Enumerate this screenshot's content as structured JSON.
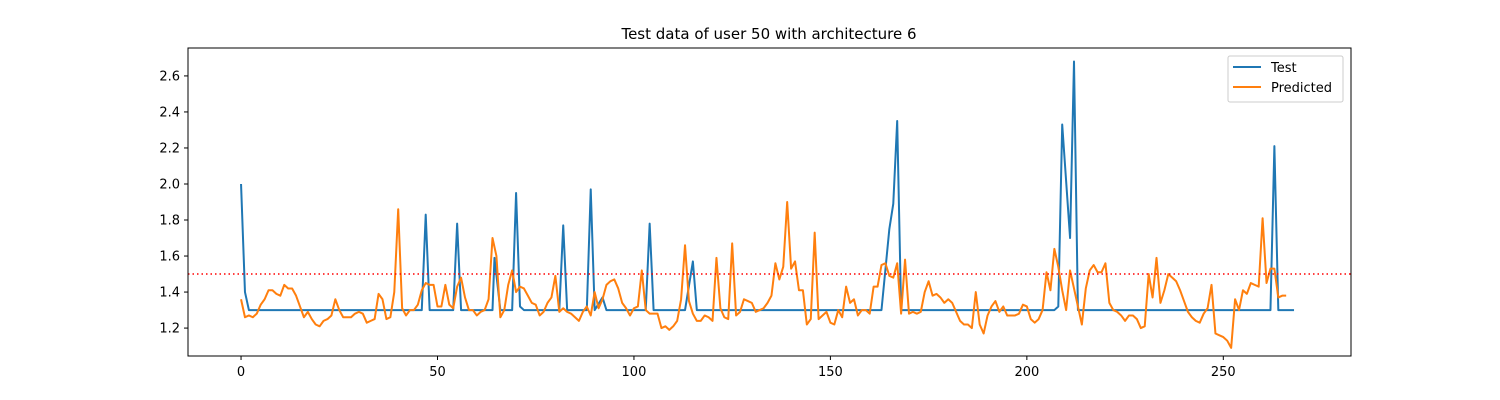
{
  "chart_data": {
    "type": "line",
    "title": "Test data of user 50 with architecture 6",
    "xlabel": "",
    "ylabel": "",
    "xlim": [
      -13.5,
      282.5
    ],
    "ylim": [
      1.045,
      2.755
    ],
    "x_ticks": [
      0,
      50,
      100,
      150,
      200,
      250
    ],
    "y_ticks": [
      1.2,
      1.4,
      1.6,
      1.8,
      2.0,
      2.2,
      2.4,
      2.6
    ],
    "y_tick_labels": [
      "1.2",
      "1.4",
      "1.6",
      "1.8",
      "2.0",
      "2.2",
      "2.4",
      "2.6"
    ],
    "legend_position": "top-right",
    "threshold": {
      "value": 1.5,
      "color": "#ff0000",
      "style": "dotted"
    },
    "series": [
      {
        "name": "Test",
        "color": "#1f77b4",
        "points": [
          [
            0,
            2.0
          ],
          [
            1,
            1.4
          ],
          [
            2,
            1.3
          ],
          [
            46,
            1.3
          ],
          [
            47,
            1.83
          ],
          [
            48,
            1.3
          ],
          [
            54,
            1.3
          ],
          [
            55,
            1.78
          ],
          [
            56,
            1.3
          ],
          [
            64,
            1.3
          ],
          [
            64.5,
            1.59
          ],
          [
            66,
            1.3
          ],
          [
            69,
            1.3
          ],
          [
            70,
            1.95
          ],
          [
            71,
            1.32
          ],
          [
            72,
            1.3
          ],
          [
            81,
            1.3
          ],
          [
            82,
            1.77
          ],
          [
            83,
            1.3
          ],
          [
            88,
            1.3
          ],
          [
            89,
            1.97
          ],
          [
            90,
            1.3
          ],
          [
            92,
            1.37
          ],
          [
            93,
            1.3
          ],
          [
            103,
            1.3
          ],
          [
            104,
            1.78
          ],
          [
            105,
            1.3
          ],
          [
            113,
            1.3
          ],
          [
            115,
            1.57
          ],
          [
            116,
            1.3
          ],
          [
            163,
            1.3
          ],
          [
            165,
            1.75
          ],
          [
            166,
            1.89
          ],
          [
            167,
            2.35
          ],
          [
            168,
            1.3
          ],
          [
            207,
            1.3
          ],
          [
            208,
            1.32
          ],
          [
            209,
            2.33
          ],
          [
            211,
            1.7
          ],
          [
            212,
            2.68
          ],
          [
            213,
            1.3
          ],
          [
            262,
            1.3
          ],
          [
            263,
            2.21
          ],
          [
            264,
            1.3
          ],
          [
            268,
            1.3
          ]
        ]
      },
      {
        "name": "Predicted",
        "color": "#ff7f0e",
        "points": [
          [
            0,
            1.36
          ],
          [
            1,
            1.26
          ],
          [
            2,
            1.27
          ],
          [
            3,
            1.26
          ],
          [
            4,
            1.28
          ],
          [
            5,
            1.33
          ],
          [
            6,
            1.36
          ],
          [
            7,
            1.41
          ],
          [
            8,
            1.41
          ],
          [
            9,
            1.39
          ],
          [
            10,
            1.38
          ],
          [
            11,
            1.44
          ],
          [
            12,
            1.42
          ],
          [
            13,
            1.42
          ],
          [
            14,
            1.38
          ],
          [
            15,
            1.32
          ],
          [
            16,
            1.26
          ],
          [
            17,
            1.29
          ],
          [
            18,
            1.25
          ],
          [
            19,
            1.22
          ],
          [
            20,
            1.21
          ],
          [
            21,
            1.24
          ],
          [
            22,
            1.25
          ],
          [
            23,
            1.27
          ],
          [
            24,
            1.36
          ],
          [
            25,
            1.3
          ],
          [
            26,
            1.26
          ],
          [
            27,
            1.26
          ],
          [
            28,
            1.26
          ],
          [
            29,
            1.28
          ],
          [
            30,
            1.29
          ],
          [
            31,
            1.28
          ],
          [
            32,
            1.23
          ],
          [
            33,
            1.24
          ],
          [
            34,
            1.25
          ],
          [
            35,
            1.39
          ],
          [
            36,
            1.36
          ],
          [
            37,
            1.25
          ],
          [
            38,
            1.26
          ],
          [
            39,
            1.4
          ],
          [
            40,
            1.86
          ],
          [
            41,
            1.31
          ],
          [
            42,
            1.27
          ],
          [
            43,
            1.3
          ],
          [
            44,
            1.3
          ],
          [
            45,
            1.33
          ],
          [
            46,
            1.41
          ],
          [
            47,
            1.45
          ],
          [
            48,
            1.44
          ],
          [
            49,
            1.44
          ],
          [
            50,
            1.32
          ],
          [
            51,
            1.32
          ],
          [
            52,
            1.44
          ],
          [
            53,
            1.33
          ],
          [
            54,
            1.31
          ],
          [
            55,
            1.43
          ],
          [
            56,
            1.48
          ],
          [
            57,
            1.37
          ],
          [
            58,
            1.3
          ],
          [
            59,
            1.3
          ],
          [
            60,
            1.27
          ],
          [
            61,
            1.29
          ],
          [
            62,
            1.3
          ],
          [
            63,
            1.36
          ],
          [
            64,
            1.7
          ],
          [
            65,
            1.6
          ],
          [
            66,
            1.26
          ],
          [
            67,
            1.3
          ],
          [
            68,
            1.44
          ],
          [
            69,
            1.52
          ],
          [
            70,
            1.4
          ],
          [
            71,
            1.43
          ],
          [
            72,
            1.42
          ],
          [
            73,
            1.38
          ],
          [
            74,
            1.34
          ],
          [
            75,
            1.33
          ],
          [
            76,
            1.27
          ],
          [
            77,
            1.29
          ],
          [
            78,
            1.34
          ],
          [
            79,
            1.37
          ],
          [
            80,
            1.49
          ],
          [
            81,
            1.29
          ],
          [
            82,
            1.31
          ],
          [
            83,
            1.29
          ],
          [
            84,
            1.28
          ],
          [
            85,
            1.26
          ],
          [
            86,
            1.24
          ],
          [
            87,
            1.29
          ],
          [
            88,
            1.32
          ],
          [
            89,
            1.27
          ],
          [
            90,
            1.4
          ],
          [
            91,
            1.31
          ],
          [
            92,
            1.36
          ],
          [
            93,
            1.44
          ],
          [
            94,
            1.46
          ],
          [
            95,
            1.47
          ],
          [
            96,
            1.42
          ],
          [
            97,
            1.34
          ],
          [
            98,
            1.31
          ],
          [
            99,
            1.27
          ],
          [
            100,
            1.31
          ],
          [
            101,
            1.32
          ],
          [
            102,
            1.52
          ],
          [
            103,
            1.3
          ],
          [
            104,
            1.28
          ],
          [
            105,
            1.28
          ],
          [
            106,
            1.28
          ],
          [
            107,
            1.2
          ],
          [
            108,
            1.21
          ],
          [
            109,
            1.19
          ],
          [
            110,
            1.21
          ],
          [
            111,
            1.24
          ],
          [
            112,
            1.36
          ],
          [
            113,
            1.66
          ],
          [
            114,
            1.35
          ],
          [
            115,
            1.28
          ],
          [
            116,
            1.24
          ],
          [
            117,
            1.24
          ],
          [
            118,
            1.27
          ],
          [
            119,
            1.26
          ],
          [
            120,
            1.24
          ],
          [
            121,
            1.59
          ],
          [
            122,
            1.31
          ],
          [
            123,
            1.26
          ],
          [
            124,
            1.25
          ],
          [
            125,
            1.67
          ],
          [
            126,
            1.27
          ],
          [
            127,
            1.29
          ],
          [
            128,
            1.36
          ],
          [
            129,
            1.35
          ],
          [
            130,
            1.34
          ],
          [
            131,
            1.29
          ],
          [
            132,
            1.3
          ],
          [
            133,
            1.31
          ],
          [
            134,
            1.34
          ],
          [
            135,
            1.38
          ],
          [
            136,
            1.56
          ],
          [
            137,
            1.47
          ],
          [
            138,
            1.54
          ],
          [
            139,
            1.9
          ],
          [
            140,
            1.53
          ],
          [
            141,
            1.57
          ],
          [
            142,
            1.41
          ],
          [
            143,
            1.41
          ],
          [
            144,
            1.22
          ],
          [
            145,
            1.25
          ],
          [
            146,
            1.73
          ],
          [
            147,
            1.25
          ],
          [
            148,
            1.27
          ],
          [
            149,
            1.29
          ],
          [
            150,
            1.23
          ],
          [
            151,
            1.22
          ],
          [
            152,
            1.3
          ],
          [
            153,
            1.26
          ],
          [
            154,
            1.43
          ],
          [
            155,
            1.34
          ],
          [
            156,
            1.36
          ],
          [
            157,
            1.27
          ],
          [
            158,
            1.3
          ],
          [
            159,
            1.3
          ],
          [
            160,
            1.28
          ],
          [
            161,
            1.43
          ],
          [
            162,
            1.43
          ],
          [
            163,
            1.55
          ],
          [
            164,
            1.56
          ],
          [
            165,
            1.49
          ],
          [
            166,
            1.48
          ],
          [
            167,
            1.56
          ],
          [
            168,
            1.28
          ],
          [
            169,
            1.58
          ],
          [
            170,
            1.28
          ],
          [
            171,
            1.29
          ],
          [
            172,
            1.28
          ],
          [
            173,
            1.29
          ],
          [
            174,
            1.4
          ],
          [
            175,
            1.46
          ],
          [
            176,
            1.38
          ],
          [
            177,
            1.39
          ],
          [
            178,
            1.37
          ],
          [
            179,
            1.34
          ],
          [
            180,
            1.36
          ],
          [
            181,
            1.34
          ],
          [
            182,
            1.29
          ],
          [
            183,
            1.24
          ],
          [
            184,
            1.22
          ],
          [
            185,
            1.22
          ],
          [
            186,
            1.2
          ],
          [
            187,
            1.4
          ],
          [
            188,
            1.22
          ],
          [
            189,
            1.17
          ],
          [
            190,
            1.27
          ],
          [
            191,
            1.32
          ],
          [
            192,
            1.35
          ],
          [
            193,
            1.29
          ],
          [
            194,
            1.32
          ],
          [
            195,
            1.27
          ],
          [
            196,
            1.27
          ],
          [
            197,
            1.27
          ],
          [
            198,
            1.28
          ],
          [
            199,
            1.33
          ],
          [
            200,
            1.32
          ],
          [
            201,
            1.25
          ],
          [
            202,
            1.23
          ],
          [
            203,
            1.25
          ],
          [
            204,
            1.3
          ],
          [
            205,
            1.51
          ],
          [
            206,
            1.41
          ],
          [
            207,
            1.64
          ],
          [
            208,
            1.54
          ],
          [
            209,
            1.41
          ],
          [
            210,
            1.3
          ],
          [
            211,
            1.52
          ],
          [
            212,
            1.42
          ],
          [
            213,
            1.32
          ],
          [
            214,
            1.22
          ],
          [
            215,
            1.42
          ],
          [
            216,
            1.52
          ],
          [
            217,
            1.55
          ],
          [
            218,
            1.51
          ],
          [
            219,
            1.51
          ],
          [
            220,
            1.56
          ],
          [
            221,
            1.34
          ],
          [
            222,
            1.3
          ],
          [
            223,
            1.29
          ],
          [
            224,
            1.27
          ],
          [
            225,
            1.24
          ],
          [
            226,
            1.27
          ],
          [
            227,
            1.27
          ],
          [
            228,
            1.25
          ],
          [
            229,
            1.2
          ],
          [
            230,
            1.21
          ],
          [
            231,
            1.5
          ],
          [
            232,
            1.37
          ],
          [
            233,
            1.59
          ],
          [
            234,
            1.34
          ],
          [
            235,
            1.41
          ],
          [
            236,
            1.5
          ],
          [
            237,
            1.48
          ],
          [
            238,
            1.46
          ],
          [
            239,
            1.41
          ],
          [
            240,
            1.35
          ],
          [
            241,
            1.29
          ],
          [
            242,
            1.26
          ],
          [
            243,
            1.24
          ],
          [
            244,
            1.23
          ],
          [
            245,
            1.28
          ],
          [
            246,
            1.31
          ],
          [
            247,
            1.44
          ],
          [
            248,
            1.17
          ],
          [
            249,
            1.16
          ],
          [
            250,
            1.15
          ],
          [
            251,
            1.13
          ],
          [
            252,
            1.09
          ],
          [
            253,
            1.36
          ],
          [
            254,
            1.3
          ],
          [
            255,
            1.41
          ],
          [
            256,
            1.39
          ],
          [
            257,
            1.45
          ],
          [
            258,
            1.44
          ],
          [
            259,
            1.43
          ],
          [
            260,
            1.81
          ],
          [
            261,
            1.45
          ],
          [
            262,
            1.53
          ],
          [
            263,
            1.53
          ],
          [
            264,
            1.37
          ],
          [
            265,
            1.38
          ],
          [
            266,
            1.38
          ]
        ]
      }
    ]
  }
}
